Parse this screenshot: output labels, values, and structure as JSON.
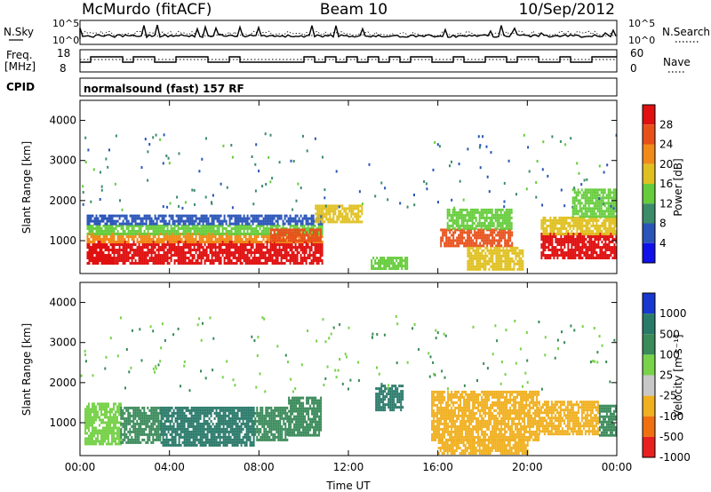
{
  "header": {
    "station": "McMurdo (fitACF)",
    "beam": "Beam 10",
    "date": "10/Sep/2012"
  },
  "strip_panels": {
    "n_sky_label": "N.Sky",
    "n_search_label": "N.Search",
    "noise_ticks_left": [
      "10^5",
      "10^0"
    ],
    "noise_ticks_right": [
      "10^5",
      "10^0"
    ],
    "freq_label_1": "Freq.",
    "freq_label_2": "[MHz]",
    "freq_ticks": [
      "18",
      "8"
    ],
    "nave_label": "Nave",
    "nave_ticks": [
      "60",
      "0"
    ],
    "cpid_label": "CPID",
    "cpid_text": "normalsound (fast) 157 RF"
  },
  "colors": {
    "power_scale": [
      "#1010e8",
      "#2a55b8",
      "#3c8c6a",
      "#66cc3c",
      "#e0c020",
      "#f08a18",
      "#e8501a",
      "#e01010"
    ],
    "velocity_scale": [
      "#1838d0",
      "#2a7a6a",
      "#3a8a5a",
      "#78d24a",
      "#c8c8c8",
      "#f0b020",
      "#f07010",
      "#e82020"
    ]
  },
  "chart_data": [
    {
      "type": "heatmap",
      "name": "Power",
      "xlabel": "",
      "ylabel": "Slant Range [km]",
      "x_ticks": [
        "00:00",
        "04:00",
        "08:00",
        "12:00",
        "16:00",
        "20:00",
        "00:00"
      ],
      "y_ticks": [
        "4000",
        "3000",
        "2000",
        "1000"
      ],
      "xlim_hours": [
        0,
        24
      ],
      "ylim_km": [
        180,
        4500
      ],
      "colorbar_label": "Power [dB]",
      "colorbar_ticks": [
        "28",
        "24",
        "20",
        "16",
        "12",
        "8",
        "4"
      ],
      "colorbar_range": [
        0,
        32
      ],
      "regions": [
        {
          "t0": 0.3,
          "t1": 10.8,
          "r0": 450,
          "r1": 1000,
          "value": 29
        },
        {
          "t0": 0.3,
          "t1": 10.8,
          "r0": 1000,
          "r1": 1200,
          "value": 22
        },
        {
          "t0": 0.3,
          "t1": 10.8,
          "r0": 1200,
          "r1": 1400,
          "value": 12
        },
        {
          "t0": 0.3,
          "t1": 10.8,
          "r0": 1400,
          "r1": 1650,
          "value": 6
        },
        {
          "t0": 8.5,
          "t1": 10.8,
          "r0": 1000,
          "r1": 1300,
          "value": 24
        },
        {
          "t0": 10.5,
          "t1": 12.6,
          "r0": 1500,
          "r1": 1900,
          "value": 16
        },
        {
          "t0": 13.0,
          "t1": 14.6,
          "r0": 300,
          "r1": 600,
          "value": 12
        },
        {
          "t0": 16.1,
          "t1": 19.3,
          "r0": 900,
          "r1": 1300,
          "value": 26
        },
        {
          "t0": 16.4,
          "t1": 19.3,
          "r0": 1300,
          "r1": 1800,
          "value": 14
        },
        {
          "t0": 17.3,
          "t1": 19.8,
          "r0": 300,
          "r1": 850,
          "value": 16
        },
        {
          "t0": 20.6,
          "t1": 24.0,
          "r0": 550,
          "r1": 1200,
          "value": 29
        },
        {
          "t0": 20.6,
          "t1": 24.0,
          "r0": 1200,
          "r1": 1600,
          "value": 17
        },
        {
          "t0": 22.0,
          "t1": 24.0,
          "r0": 1600,
          "r1": 2300,
          "value": 12
        }
      ]
    },
    {
      "type": "heatmap",
      "name": "Velocity",
      "xlabel": "Time UT",
      "ylabel": "Slant Range [km]",
      "x_ticks": [
        "00:00",
        "04:00",
        "08:00",
        "12:00",
        "16:00",
        "20:00",
        "00:00"
      ],
      "y_ticks": [
        "4000",
        "3000",
        "2000",
        "1000"
      ],
      "xlim_hours": [
        0,
        24
      ],
      "ylim_km": [
        180,
        4500
      ],
      "colorbar_label": "Velocity [m s⁻¹]",
      "colorbar_ticks": [
        "1000",
        "500",
        "100",
        "25",
        "-25",
        "-100",
        "-500",
        "-1000"
      ],
      "colorbar_range": [
        -1000,
        1000
      ],
      "regions": [
        {
          "t0": 0.2,
          "t1": 1.8,
          "r0": 450,
          "r1": 1500,
          "value": 0
        },
        {
          "t0": 1.8,
          "t1": 3.6,
          "r0": 500,
          "r1": 1400,
          "value": 60
        },
        {
          "t0": 3.6,
          "t1": 7.8,
          "r0": 450,
          "r1": 1400,
          "value": 300
        },
        {
          "t0": 7.8,
          "t1": 9.3,
          "r0": 550,
          "r1": 1400,
          "value": 60
        },
        {
          "t0": 9.3,
          "t1": 10.8,
          "r0": 700,
          "r1": 1650,
          "value": 50
        },
        {
          "t0": 13.2,
          "t1": 14.4,
          "r0": 1300,
          "r1": 1950,
          "value": 300
        },
        {
          "t0": 15.7,
          "t1": 20.5,
          "r0": 600,
          "r1": 1800,
          "value": -120
        },
        {
          "t0": 16.0,
          "t1": 20.0,
          "r0": 250,
          "r1": 600,
          "value": -300
        },
        {
          "t0": 20.5,
          "t1": 23.2,
          "r0": 700,
          "r1": 1550,
          "value": -110
        },
        {
          "t0": 23.2,
          "t1": 24.0,
          "r0": 700,
          "r1": 1450,
          "value": 60
        }
      ]
    }
  ]
}
